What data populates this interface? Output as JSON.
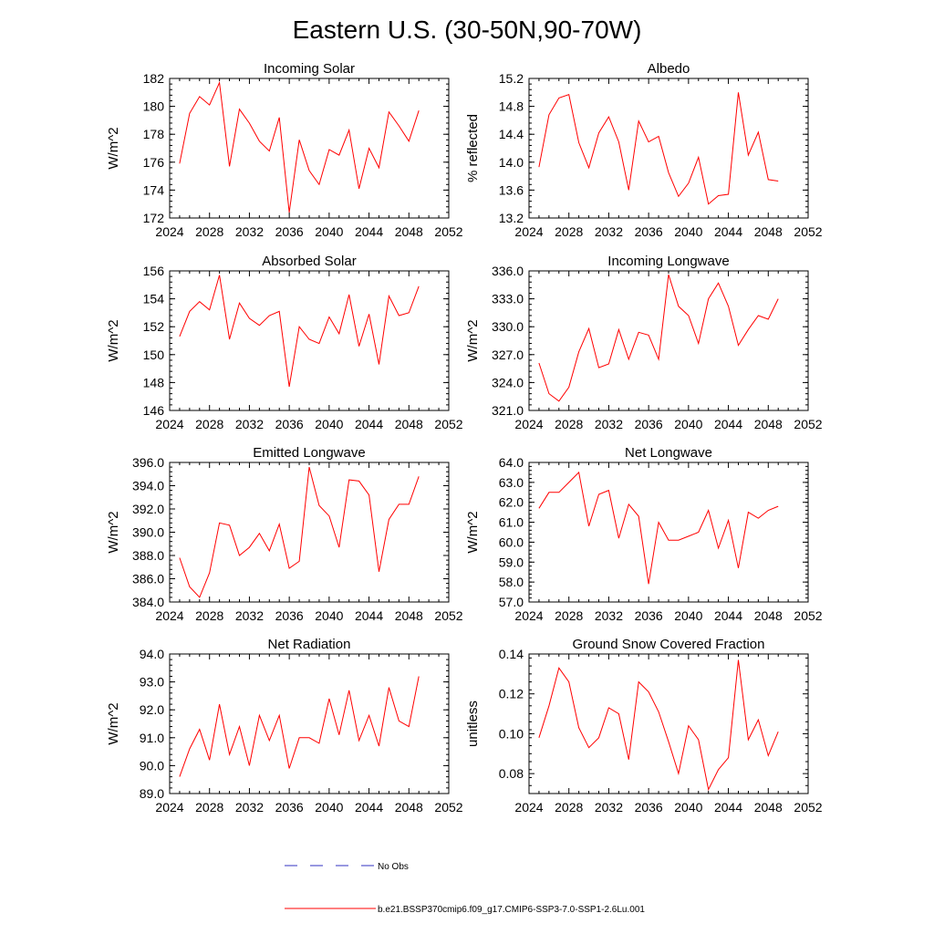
{
  "title": "Eastern U.S. (30-50N,90-70W)",
  "colors": {
    "model": "#ff0000",
    "obs": "#3030c0",
    "axis": "#000000"
  },
  "legend": {
    "obs_label": "No Obs",
    "model_label": "b.e21.BSSP370cmip6.f09_g17.CMIP6-SSP3-7.0-SSP1-2.6Lu.001"
  },
  "chart_data": [
    {
      "type": "line",
      "title": "Incoming Solar",
      "ylabel": "W/m^2",
      "xlim": [
        2024,
        2052
      ],
      "ylim": [
        172,
        182
      ],
      "xticks": [
        "2024",
        "2028",
        "2032",
        "2036",
        "2040",
        "2044",
        "2048",
        "2052"
      ],
      "yticks": [
        "172",
        "174",
        "176",
        "178",
        "180",
        "182"
      ],
      "x": [
        2025,
        2026,
        2027,
        2028,
        2029,
        2030,
        2031,
        2032,
        2033,
        2034,
        2035,
        2036,
        2037,
        2038,
        2039,
        2040,
        2041,
        2042,
        2043,
        2044,
        2045,
        2046,
        2047,
        2048,
        2049
      ],
      "values": [
        175.9,
        179.5,
        180.7,
        180.1,
        181.7,
        175.7,
        179.8,
        178.8,
        177.5,
        176.8,
        179.2,
        172.4,
        177.6,
        175.4,
        174.4,
        176.9,
        176.5,
        178.3,
        174.1,
        177.0,
        175.6,
        179.6,
        178.6,
        177.5,
        179.7
      ]
    },
    {
      "type": "line",
      "title": "Albedo",
      "ylabel": "% reflected",
      "xlim": [
        2024,
        2052
      ],
      "ylim": [
        13.2,
        15.2
      ],
      "xticks": [
        "2024",
        "2028",
        "2032",
        "2036",
        "2040",
        "2044",
        "2048",
        "2052"
      ],
      "yticks": [
        "13.2",
        "13.6",
        "14.0",
        "14.4",
        "14.8",
        "15.2"
      ],
      "x": [
        2025,
        2026,
        2027,
        2028,
        2029,
        2030,
        2031,
        2032,
        2033,
        2034,
        2035,
        2036,
        2037,
        2038,
        2039,
        2040,
        2041,
        2042,
        2043,
        2044,
        2045,
        2046,
        2047,
        2048,
        2049
      ],
      "values": [
        13.93,
        14.68,
        14.92,
        14.97,
        14.28,
        13.92,
        14.42,
        14.65,
        14.29,
        13.6,
        14.59,
        14.29,
        14.37,
        13.85,
        13.51,
        13.7,
        14.07,
        13.4,
        13.52,
        13.54,
        15.0,
        14.1,
        14.43,
        13.75,
        13.73
      ]
    },
    {
      "type": "line",
      "title": "Absorbed Solar",
      "ylabel": "W/m^2",
      "xlim": [
        2024,
        2052
      ],
      "ylim": [
        146,
        156
      ],
      "xticks": [
        "2024",
        "2028",
        "2032",
        "2036",
        "2040",
        "2044",
        "2048",
        "2052"
      ],
      "yticks": [
        "146",
        "148",
        "150",
        "152",
        "154",
        "156"
      ],
      "x": [
        2025,
        2026,
        2027,
        2028,
        2029,
        2030,
        2031,
        2032,
        2033,
        2034,
        2035,
        2036,
        2037,
        2038,
        2039,
        2040,
        2041,
        2042,
        2043,
        2044,
        2045,
        2046,
        2047,
        2048,
        2049
      ],
      "values": [
        151.3,
        153.1,
        153.8,
        153.2,
        155.7,
        151.1,
        153.7,
        152.6,
        152.1,
        152.8,
        153.1,
        147.7,
        152.0,
        151.1,
        150.8,
        152.7,
        151.5,
        154.3,
        150.6,
        152.9,
        149.3,
        154.2,
        152.8,
        153.0,
        154.9
      ]
    },
    {
      "type": "line",
      "title": "Incoming Longwave",
      "ylabel": "W/m^2",
      "xlim": [
        2024,
        2052
      ],
      "ylim": [
        321.0,
        336.0
      ],
      "xticks": [
        "2024",
        "2028",
        "2032",
        "2036",
        "2040",
        "2044",
        "2048",
        "2052"
      ],
      "yticks": [
        "321.0",
        "324.0",
        "327.0",
        "330.0",
        "333.0",
        "336.0"
      ],
      "x": [
        2025,
        2026,
        2027,
        2028,
        2029,
        2030,
        2031,
        2032,
        2033,
        2034,
        2035,
        2036,
        2037,
        2038,
        2039,
        2040,
        2041,
        2042,
        2043,
        2044,
        2045,
        2046,
        2047,
        2048,
        2049
      ],
      "values": [
        326.1,
        322.8,
        322.0,
        323.5,
        327.3,
        329.8,
        325.6,
        326.0,
        329.7,
        326.5,
        329.4,
        329.1,
        326.5,
        335.6,
        332.2,
        331.2,
        328.2,
        333.0,
        334.7,
        332.2,
        328.0,
        329.7,
        331.2,
        330.8,
        333.0
      ]
    },
    {
      "type": "line",
      "title": "Emitted Longwave",
      "ylabel": "W/m^2",
      "xlim": [
        2024,
        2052
      ],
      "ylim": [
        384.0,
        396.0
      ],
      "xticks": [
        "2024",
        "2028",
        "2032",
        "2036",
        "2040",
        "2044",
        "2048",
        "2052"
      ],
      "yticks": [
        "384.0",
        "386.0",
        "388.0",
        "390.0",
        "392.0",
        "394.0",
        "396.0"
      ],
      "x": [
        2025,
        2026,
        2027,
        2028,
        2029,
        2030,
        2031,
        2032,
        2033,
        2034,
        2035,
        2036,
        2037,
        2038,
        2039,
        2040,
        2041,
        2042,
        2043,
        2044,
        2045,
        2046,
        2047,
        2048,
        2049
      ],
      "values": [
        387.8,
        385.3,
        384.4,
        386.5,
        390.8,
        390.6,
        388.0,
        388.7,
        389.9,
        388.4,
        390.7,
        386.9,
        387.5,
        395.6,
        392.3,
        391.4,
        388.7,
        394.5,
        394.4,
        393.2,
        386.6,
        391.1,
        392.4,
        392.4,
        394.8
      ]
    },
    {
      "type": "line",
      "title": "Net Longwave",
      "ylabel": "W/m^2",
      "xlim": [
        2024,
        2052
      ],
      "ylim": [
        57.0,
        64.0
      ],
      "xticks": [
        "2024",
        "2028",
        "2032",
        "2036",
        "2040",
        "2044",
        "2048",
        "2052"
      ],
      "yticks": [
        "57.0",
        "58.0",
        "59.0",
        "60.0",
        "61.0",
        "62.0",
        "63.0",
        "64.0"
      ],
      "x": [
        2025,
        2026,
        2027,
        2028,
        2029,
        2030,
        2031,
        2032,
        2033,
        2034,
        2035,
        2036,
        2037,
        2038,
        2039,
        2040,
        2041,
        2042,
        2043,
        2044,
        2045,
        2046,
        2047,
        2048,
        2049
      ],
      "values": [
        61.7,
        62.5,
        62.5,
        63.0,
        63.5,
        60.8,
        62.4,
        62.6,
        60.2,
        61.9,
        61.3,
        57.9,
        61.0,
        60.1,
        60.1,
        60.3,
        60.5,
        61.6,
        59.7,
        61.1,
        58.7,
        61.5,
        61.2,
        61.6,
        61.8
      ]
    },
    {
      "type": "line",
      "title": "Net Radiation",
      "ylabel": "W/m^2",
      "xlim": [
        2024,
        2052
      ],
      "ylim": [
        89.0,
        94.0
      ],
      "xticks": [
        "2024",
        "2028",
        "2032",
        "2036",
        "2040",
        "2044",
        "2048",
        "2052"
      ],
      "yticks": [
        "89.0",
        "90.0",
        "91.0",
        "92.0",
        "93.0",
        "94.0"
      ],
      "x": [
        2025,
        2026,
        2027,
        2028,
        2029,
        2030,
        2031,
        2032,
        2033,
        2034,
        2035,
        2036,
        2037,
        2038,
        2039,
        2040,
        2041,
        2042,
        2043,
        2044,
        2045,
        2046,
        2047,
        2048,
        2049
      ],
      "values": [
        89.6,
        90.6,
        91.3,
        90.2,
        92.2,
        90.4,
        91.4,
        90.0,
        91.8,
        90.9,
        91.8,
        89.9,
        91.0,
        91.0,
        90.8,
        92.4,
        91.1,
        92.7,
        90.9,
        91.8,
        90.7,
        92.8,
        91.6,
        91.4,
        93.2
      ]
    },
    {
      "type": "line",
      "title": "Ground Snow Covered Fraction",
      "ylabel": "unitless",
      "xlim": [
        2024,
        2052
      ],
      "ylim": [
        0.07,
        0.14
      ],
      "xticks": [
        "2024",
        "2028",
        "2032",
        "2036",
        "2040",
        "2044",
        "2048",
        "2052"
      ],
      "yticks": [
        "0.08",
        "0.10",
        "0.12",
        "0.14"
      ],
      "ytick_values": [
        0.08,
        0.1,
        0.12,
        0.14
      ],
      "x": [
        2025,
        2026,
        2027,
        2028,
        2029,
        2030,
        2031,
        2032,
        2033,
        2034,
        2035,
        2036,
        2037,
        2038,
        2039,
        2040,
        2041,
        2042,
        2043,
        2044,
        2045,
        2046,
        2047,
        2048,
        2049
      ],
      "values": [
        0.098,
        0.114,
        0.133,
        0.126,
        0.103,
        0.093,
        0.098,
        0.113,
        0.11,
        0.087,
        0.126,
        0.121,
        0.111,
        0.096,
        0.08,
        0.104,
        0.097,
        0.072,
        0.082,
        0.088,
        0.137,
        0.097,
        0.107,
        0.089,
        0.101
      ]
    }
  ]
}
